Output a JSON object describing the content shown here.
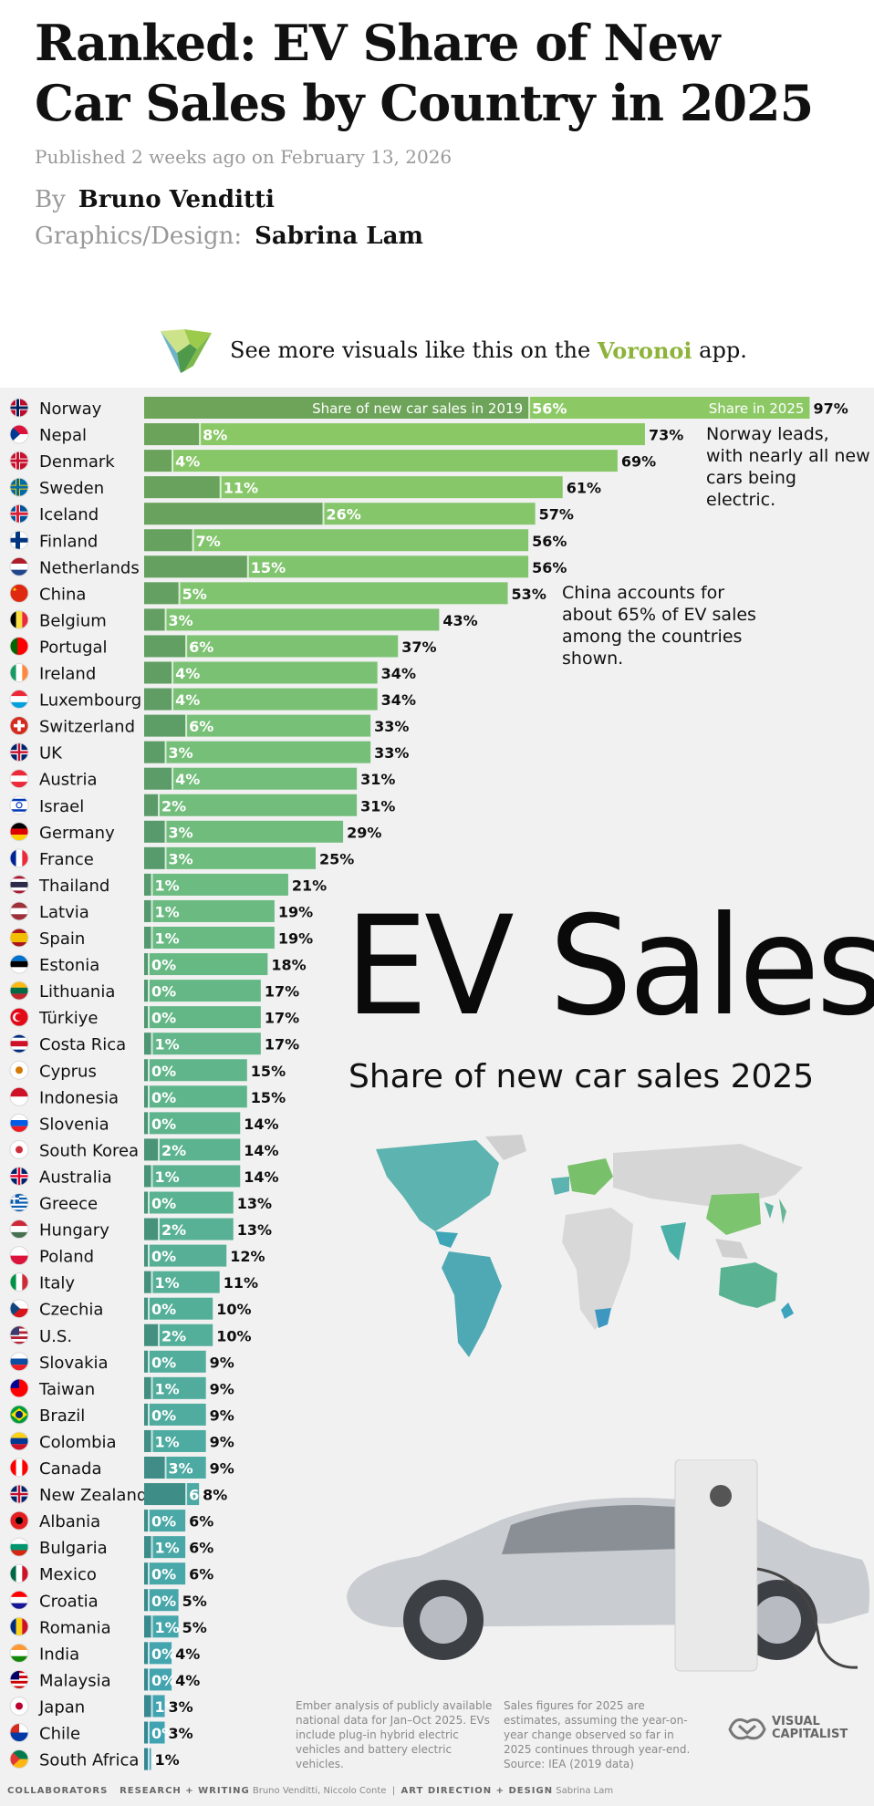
{
  "article": {
    "title": "Ranked: EV Share of New Car Sales by Country in 2025",
    "published": "Published 2 weeks ago on February 13, 2026",
    "by_label": "By",
    "author": "Bruno Venditti",
    "design_label": "Graphics/Design:",
    "designer": "Sabrina Lam"
  },
  "promo": {
    "pre": "See more visuals like this on the",
    "app": "Voronoi",
    "post": "app."
  },
  "chart_data": {
    "type": "bar",
    "title": "EV Sales",
    "subtitle": "Share of new car sales 2025",
    "series": [
      {
        "name": "Share of new car sales in 2019",
        "values": [
          56,
          8,
          4,
          11,
          26,
          7,
          15,
          5,
          3,
          6,
          4,
          4,
          6,
          3,
          4,
          2,
          3,
          3,
          1,
          1,
          1,
          0,
          0,
          0,
          1,
          0,
          0,
          0,
          2,
          1,
          0,
          2,
          0,
          1,
          0,
          2,
          0,
          1,
          0,
          1,
          3,
          6,
          0,
          1,
          0,
          0,
          1,
          0,
          0,
          1,
          0,
          0
        ]
      },
      {
        "name": "Share in 2025",
        "values": [
          97,
          73,
          69,
          61,
          57,
          56,
          56,
          53,
          43,
          37,
          34,
          34,
          33,
          33,
          31,
          31,
          29,
          25,
          21,
          19,
          19,
          18,
          17,
          17,
          17,
          15,
          15,
          14,
          14,
          14,
          13,
          13,
          12,
          11,
          10,
          10,
          9,
          9,
          9,
          9,
          9,
          8,
          6,
          6,
          6,
          5,
          5,
          4,
          4,
          3,
          3,
          1
        ]
      }
    ],
    "categories": [
      "Norway",
      "Nepal",
      "Denmark",
      "Sweden",
      "Iceland",
      "Finland",
      "Netherlands",
      "China",
      "Belgium",
      "Portugal",
      "Ireland",
      "Luxembourg",
      "Switzerland",
      "UK",
      "Austria",
      "Israel",
      "Germany",
      "France",
      "Thailand",
      "Latvia",
      "Spain",
      "Estonia",
      "Lithuania",
      "Türkiye",
      "Costa Rica",
      "Cyprus",
      "Indonesia",
      "Slovenia",
      "South Korea",
      "Australia",
      "Greece",
      "Hungary",
      "Poland",
      "Italy",
      "Czechia",
      "U.S.",
      "Slovakia",
      "Taiwan",
      "Brazil",
      "Colombia",
      "Canada",
      "New Zealand",
      "Albania",
      "Bulgaria",
      "Mexico",
      "Croatia",
      "Romania",
      "India",
      "Malaysia",
      "Japan",
      "Chile",
      "South Africa"
    ],
    "xlim": [
      0,
      100
    ],
    "legend_labels": {
      "y2019": "Share of new car sales in 2019",
      "y2025": "Share in 2025"
    },
    "annotations": [
      {
        "country": "Norway",
        "text": "Norway leads, with nearly all new cars being electric."
      },
      {
        "country": "China",
        "text": "China accounts for about 65% of EV sales among the countries shown."
      }
    ],
    "colors": {
      "top": "#8cc965",
      "mid": "#5fb58b",
      "bottom": "#3fa2b4",
      "bar_2019_overlay": "rgba(30,70,60,0.28)",
      "label_dark": "#0f0f0f",
      "label_light": "#ffffff"
    }
  },
  "flags": {
    "Norway": [
      "#ba0c2f",
      "#ffffff",
      "#00205b",
      "cross"
    ],
    "Nepal": [
      "#dc143c",
      "#ffffff",
      "#003893",
      "tri"
    ],
    "Denmark": [
      "#c8102e",
      "#ffffff",
      "#c8102e",
      "cross"
    ],
    "Sweden": [
      "#006aa7",
      "#fecc00",
      "#006aa7",
      "cross"
    ],
    "Iceland": [
      "#02529c",
      "#ffffff",
      "#dc1e35",
      "cross"
    ],
    "Finland": [
      "#ffffff",
      "#003580",
      "#003580",
      "cross"
    ],
    "Netherlands": [
      "#ae1c28",
      "#ffffff",
      "#21468b",
      "h3"
    ],
    "China": [
      "#de2910",
      "#ffde00",
      "#de2910",
      "star"
    ],
    "Belgium": [
      "#000000",
      "#fae042",
      "#ed2939",
      "v3"
    ],
    "Portugal": [
      "#006600",
      "#ff0000",
      "#ff0000",
      "v2"
    ],
    "Ireland": [
      "#169b62",
      "#ffffff",
      "#ff883e",
      "v3"
    ],
    "Luxembourg": [
      "#ed2939",
      "#ffffff",
      "#00a1de",
      "h3"
    ],
    "Switzerland": [
      "#d52b1e",
      "#ffffff",
      "#d52b1e",
      "plus"
    ],
    "UK": [
      "#012169",
      "#ffffff",
      "#c8102e",
      "uk"
    ],
    "Austria": [
      "#ed2939",
      "#ffffff",
      "#ed2939",
      "h3"
    ],
    "Israel": [
      "#ffffff",
      "#0038b8",
      "#ffffff",
      "israel"
    ],
    "Germany": [
      "#000000",
      "#dd0000",
      "#ffce00",
      "h3"
    ],
    "France": [
      "#002395",
      "#ffffff",
      "#ed2939",
      "v3"
    ],
    "Thailand": [
      "#a51931",
      "#ffffff",
      "#2d2a4a",
      "thai"
    ],
    "Latvia": [
      "#9e3039",
      "#ffffff",
      "#9e3039",
      "h3"
    ],
    "Spain": [
      "#aa151b",
      "#f1bf00",
      "#aa151b",
      "spain"
    ],
    "Estonia": [
      "#0072ce",
      "#000000",
      "#ffffff",
      "h3"
    ],
    "Lithuania": [
      "#fdb913",
      "#006a44",
      "#c1272d",
      "h3"
    ],
    "Türkiye": [
      "#e30a17",
      "#ffffff",
      "#e30a17",
      "crescent"
    ],
    "Costa Rica": [
      "#002b7f",
      "#ffffff",
      "#ce1126",
      "thai"
    ],
    "Cyprus": [
      "#ffffff",
      "#d57800",
      "#4e5b31",
      "dot"
    ],
    "Indonesia": [
      "#ce1126",
      "#ffffff",
      "#ffffff",
      "h2"
    ],
    "Slovenia": [
      "#ffffff",
      "#005ce5",
      "#ed1c24",
      "h3"
    ],
    "South Korea": [
      "#ffffff",
      "#cd2e3a",
      "#0047a0",
      "dot"
    ],
    "Australia": [
      "#012169",
      "#ffffff",
      "#e4002b",
      "uk"
    ],
    "Greece": [
      "#0d5eaf",
      "#ffffff",
      "#0d5eaf",
      "stripes"
    ],
    "Hungary": [
      "#ce2939",
      "#ffffff",
      "#477050",
      "h3"
    ],
    "Poland": [
      "#ffffff",
      "#dc143c",
      "#dc143c",
      "h2"
    ],
    "Italy": [
      "#009246",
      "#ffffff",
      "#ce2b37",
      "v3"
    ],
    "Czechia": [
      "#ffffff",
      "#d7141a",
      "#11457e",
      "tri"
    ],
    "U.S.": [
      "#b22234",
      "#ffffff",
      "#3c3b6e",
      "us"
    ],
    "Slovakia": [
      "#ffffff",
      "#0b4ea2",
      "#ee1c25",
      "h3"
    ],
    "Taiwan": [
      "#fe0000",
      "#000095",
      "#ffffff",
      "canton"
    ],
    "Brazil": [
      "#009c3b",
      "#ffdf00",
      "#002776",
      "diamond"
    ],
    "Colombia": [
      "#fcd116",
      "#003893",
      "#ce1126",
      "h3"
    ],
    "Canada": [
      "#ff0000",
      "#ffffff",
      "#ff0000",
      "v3"
    ],
    "New Zealand": [
      "#012169",
      "#ffffff",
      "#c8102e",
      "uk"
    ],
    "Albania": [
      "#e41e20",
      "#000000",
      "#e41e20",
      "dot"
    ],
    "Bulgaria": [
      "#ffffff",
      "#00966e",
      "#d62612",
      "h3"
    ],
    "Mexico": [
      "#006847",
      "#ffffff",
      "#ce1126",
      "v3"
    ],
    "Croatia": [
      "#ff0000",
      "#ffffff",
      "#171796",
      "h3"
    ],
    "Romania": [
      "#002b7f",
      "#fcd116",
      "#ce1126",
      "v3"
    ],
    "India": [
      "#ff9933",
      "#ffffff",
      "#138808",
      "h3"
    ],
    "Malaysia": [
      "#cc0001",
      "#ffffff",
      "#010066",
      "us"
    ],
    "Japan": [
      "#ffffff",
      "#bc002d",
      "#ffffff",
      "dot"
    ],
    "Chile": [
      "#ffffff",
      "#d52b1e",
      "#0039a6",
      "canton"
    ],
    "South Africa": [
      "#007a4d",
      "#ffb612",
      "#de3831",
      "tri"
    ]
  },
  "footnotes": {
    "left": "Ember analysis of publicly available national data for Jan–Oct 2025. EVs include plug-in hybrid electric vehicles and battery electric vehicles.",
    "right": "Sales figures for 2025 are estimates, assuming the year-on-year change observed so far in 2025 continues through year-end. Source: IEA (2019 data)"
  },
  "brand": {
    "line1": "VISUAL",
    "line2": "CAPITALIST"
  },
  "collaborators": {
    "label": "COLLABORATORS",
    "research_label": "RESEARCH + WRITING",
    "research": "Bruno Venditti, Niccolo Conte",
    "sep": "|",
    "art_label": "ART DIRECTION + DESIGN",
    "art": "Sabrina Lam"
  }
}
